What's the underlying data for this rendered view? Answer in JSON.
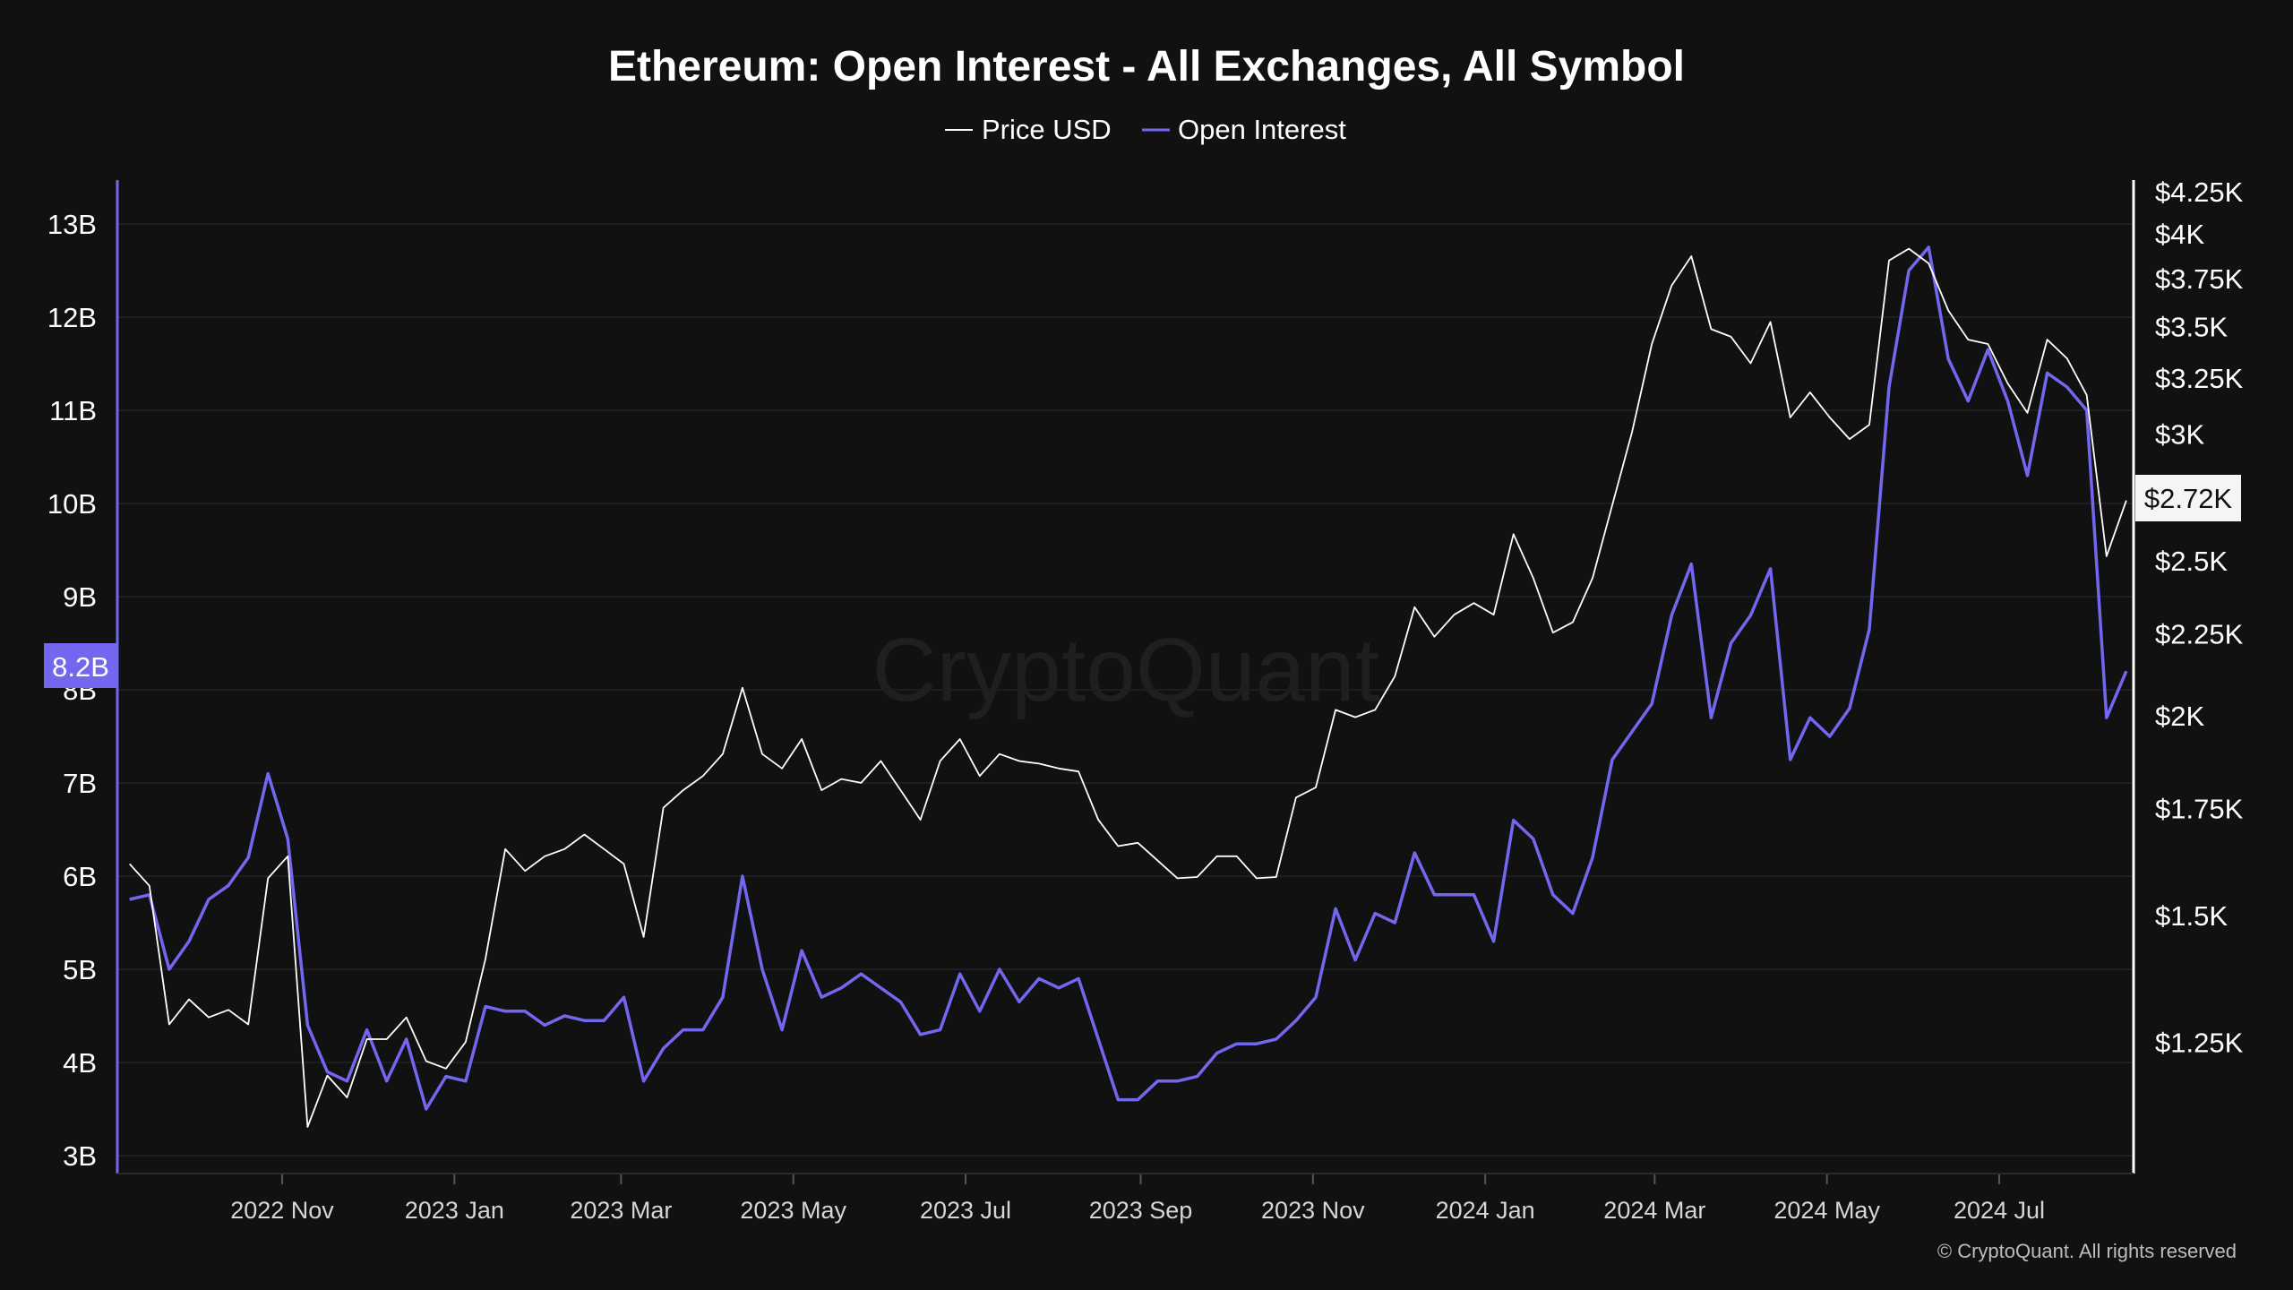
{
  "chart_data": {
    "type": "line",
    "title": "Ethereum: Open Interest - All Exchanges, All Symbol",
    "watermark": "CryptoQuant",
    "copyright": "© CryptoQuant. All rights reserved",
    "legend": {
      "placement": "top-center",
      "entries": [
        "Price USD",
        "Open Interest"
      ]
    },
    "colors": {
      "background": "#111112",
      "price": "#ffffff",
      "open_interest": "#7367f0",
      "grid": "#1e1e20"
    },
    "grid": true,
    "y_left": {
      "unit": "USD (B)",
      "range": [
        3,
        13
      ],
      "ticks": [
        {
          "v": 13,
          "label": "13B"
        },
        {
          "v": 12,
          "label": "12B"
        },
        {
          "v": 11,
          "label": "11B"
        },
        {
          "v": 10,
          "label": "10B"
        },
        {
          "v": 9,
          "label": "9B"
        },
        {
          "v": 8,
          "label": "8B"
        },
        {
          "v": 7,
          "label": "7B"
        },
        {
          "v": 6,
          "label": "6B"
        },
        {
          "v": 5,
          "label": "5B"
        },
        {
          "v": 4,
          "label": "4B"
        },
        {
          "v": 3,
          "label": "3B"
        }
      ],
      "current_label": "8.2B"
    },
    "y_right": {
      "scale": "log",
      "ticks": [
        {
          "v": 4250,
          "label": "$4.25K"
        },
        {
          "v": 4000,
          "label": "$4K"
        },
        {
          "v": 3750,
          "label": "$3.75K"
        },
        {
          "v": 3500,
          "label": "$3.5K"
        },
        {
          "v": 3250,
          "label": "$3.25K"
        },
        {
          "v": 3000,
          "label": "$3K"
        },
        {
          "v": 2500,
          "label": "$2.5K"
        },
        {
          "v": 2250,
          "label": "$2.25K"
        },
        {
          "v": 2000,
          "label": "$2K"
        },
        {
          "v": 1750,
          "label": "$1.75K"
        },
        {
          "v": 1500,
          "label": "$1.5K"
        },
        {
          "v": 1250,
          "label": "$1.25K"
        }
      ],
      "current_label": "$2.72K"
    },
    "x_ticks": [
      {
        "date": "2022-11-01",
        "label": "2022 Nov"
      },
      {
        "date": "2023-01-01",
        "label": "2023 Jan"
      },
      {
        "date": "2023-03-01",
        "label": "2023 Mar"
      },
      {
        "date": "2023-05-01",
        "label": "2023 May"
      },
      {
        "date": "2023-07-01",
        "label": "2023 Jul"
      },
      {
        "date": "2023-09-01",
        "label": "2023 Sep"
      },
      {
        "date": "2023-11-01",
        "label": "2023 Nov"
      },
      {
        "date": "2024-01-01",
        "label": "2024 Jan"
      },
      {
        "date": "2024-03-01",
        "label": "2024 Mar"
      },
      {
        "date": "2024-05-01",
        "label": "2024 May"
      },
      {
        "date": "2024-07-01",
        "label": "2024 Jul"
      }
    ],
    "x": [
      "2022-09-08",
      "2022-09-15",
      "2022-09-22",
      "2022-09-29",
      "2022-10-06",
      "2022-10-13",
      "2022-10-20",
      "2022-10-27",
      "2022-11-03",
      "2022-11-10",
      "2022-11-17",
      "2022-11-24",
      "2022-12-01",
      "2022-12-08",
      "2022-12-15",
      "2022-12-22",
      "2022-12-29",
      "2023-01-05",
      "2023-01-12",
      "2023-01-19",
      "2023-01-26",
      "2023-02-02",
      "2023-02-09",
      "2023-02-16",
      "2023-02-23",
      "2023-03-02",
      "2023-03-09",
      "2023-03-16",
      "2023-03-23",
      "2023-03-30",
      "2023-04-06",
      "2023-04-13",
      "2023-04-20",
      "2023-04-27",
      "2023-05-04",
      "2023-05-11",
      "2023-05-18",
      "2023-05-25",
      "2023-06-01",
      "2023-06-08",
      "2023-06-15",
      "2023-06-22",
      "2023-06-29",
      "2023-07-06",
      "2023-07-13",
      "2023-07-20",
      "2023-07-27",
      "2023-08-03",
      "2023-08-10",
      "2023-08-17",
      "2023-08-24",
      "2023-08-31",
      "2023-09-07",
      "2023-09-14",
      "2023-09-21",
      "2023-09-28",
      "2023-10-05",
      "2023-10-12",
      "2023-10-19",
      "2023-10-26",
      "2023-11-02",
      "2023-11-09",
      "2023-11-16",
      "2023-11-23",
      "2023-11-30",
      "2023-12-07",
      "2023-12-14",
      "2023-12-21",
      "2023-12-28",
      "2024-01-04",
      "2024-01-11",
      "2024-01-18",
      "2024-01-25",
      "2024-02-01",
      "2024-02-08",
      "2024-02-15",
      "2024-02-22",
      "2024-02-29",
      "2024-03-07",
      "2024-03-14",
      "2024-03-21",
      "2024-03-28",
      "2024-04-04",
      "2024-04-11",
      "2024-04-18",
      "2024-04-25",
      "2024-05-02",
      "2024-05-09",
      "2024-05-16",
      "2024-05-23",
      "2024-05-30",
      "2024-06-06",
      "2024-06-13",
      "2024-06-20",
      "2024-06-27",
      "2024-07-04",
      "2024-07-11",
      "2024-07-18",
      "2024-07-25",
      "2024-08-01",
      "2024-08-08",
      "2024-08-15"
    ],
    "series": [
      {
        "name": "Price USD",
        "axis": "right",
        "values": [
          1616,
          1566,
          1283,
          1330,
          1296,
          1310,
          1283,
          1583,
          1634,
          1107,
          1192,
          1155,
          1256,
          1256,
          1296,
          1217,
          1204,
          1251,
          1410,
          1651,
          1600,
          1634,
          1651,
          1686,
          1651,
          1616,
          1455,
          1752,
          1797,
          1834,
          1893,
          2082,
          1893,
          1854,
          1934,
          1797,
          1826,
          1816,
          1874,
          1797,
          1722,
          1874,
          1934,
          1834,
          1893,
          1874,
          1867,
          1854,
          1846,
          1722,
          1658,
          1666,
          1624,
          1583,
          1586,
          1634,
          1634,
          1583,
          1586,
          1778,
          1804,
          2017,
          1996,
          2017,
          2117,
          2338,
          2241,
          2313,
          2352,
          2313,
          2597,
          2438,
          2254,
          2288,
          2438,
          2708,
          3008,
          3414,
          3714,
          3874,
          3488,
          3450,
          3321,
          3524,
          3072,
          3185,
          3072,
          2978,
          3040,
          3850,
          3916,
          3834,
          3583,
          3436,
          3414,
          3226,
          3092,
          3436,
          3344,
          3172,
          2516,
          2726
        ]
      },
      {
        "name": "Open Interest",
        "axis": "left",
        "values": [
          5.75,
          5.8,
          5.0,
          5.3,
          5.75,
          5.9,
          6.2,
          7.1,
          6.4,
          4.4,
          3.9,
          3.8,
          4.35,
          3.8,
          4.25,
          3.5,
          3.85,
          3.8,
          4.6,
          4.55,
          4.55,
          4.4,
          4.5,
          4.45,
          4.45,
          4.7,
          3.8,
          4.15,
          4.35,
          4.35,
          4.7,
          6.0,
          5.0,
          4.35,
          5.2,
          4.7,
          4.8,
          4.95,
          4.8,
          4.65,
          4.3,
          4.35,
          4.95,
          4.55,
          5.0,
          4.65,
          4.9,
          4.8,
          4.9,
          4.25,
          3.6,
          3.6,
          3.8,
          3.8,
          3.85,
          4.1,
          4.2,
          4.2,
          4.25,
          4.45,
          4.7,
          5.65,
          5.1,
          5.6,
          5.5,
          6.25,
          5.8,
          5.8,
          5.8,
          5.3,
          6.6,
          6.4,
          5.8,
          5.6,
          6.2,
          7.25,
          7.55,
          7.85,
          8.8,
          9.35,
          7.7,
          8.5,
          8.8,
          9.3,
          7.25,
          7.7,
          7.5,
          7.8,
          8.65,
          11.25,
          12.5,
          12.75,
          11.55,
          11.1,
          11.65,
          11.1,
          10.3,
          11.4,
          11.25,
          11.0,
          7.7,
          8.2
        ]
      }
    ]
  }
}
